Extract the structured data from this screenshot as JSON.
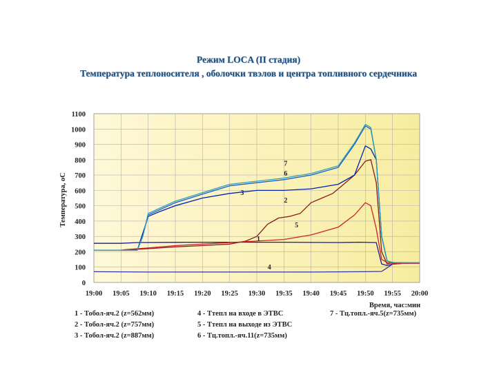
{
  "header": {
    "title": "Режим LOCA (II стадия)",
    "subtitle": "Температура теплоносителя , оболочки твэлов и центра топливного сердечника"
  },
  "chart_data": {
    "type": "line",
    "ylabel": "Температура, oC",
    "xlabel": "Время, час:мин",
    "ylim": [
      0,
      1100
    ],
    "yticks": [
      "0",
      "100",
      "200",
      "300",
      "400",
      "500",
      "600",
      "700",
      "800",
      "900",
      "1000",
      "1100"
    ],
    "xticks": [
      "19:00",
      "19:05",
      "19:10",
      "19:15",
      "19:20",
      "19:25",
      "19:30",
      "19:35",
      "19:40",
      "19:45",
      "19:50",
      "19:55",
      "20:00"
    ],
    "grid": true,
    "legend_placement": "bottom",
    "legend": [
      "1 - Тобол-яч.2 (z=562мм)",
      "2 - Тобол-яч.2 (z=757мм)",
      "3 - Тобол-яч.2 (z=887мм)",
      "4 - Ттепл на входе в ЭТВС",
      "5 - Ттепл на выходе из ЭТВС",
      "6 - Тц.топл.-яч.11(z=735мм)",
      "7 - Тц.топл.-яч.5(z=735мм)"
    ],
    "curve_labels": [
      "1",
      "2",
      "3",
      "4",
      "5",
      "6",
      "7"
    ],
    "series": [
      {
        "name": "1",
        "color": "#1a1a8c",
        "x": [
          0,
          5,
          8,
          20,
          35,
          45,
          49,
          52,
          53,
          54,
          55,
          57,
          60
        ],
        "y": [
          255,
          255,
          260,
          262,
          262,
          260,
          262,
          260,
          120,
          110,
          120,
          125,
          125
        ]
      },
      {
        "name": "2",
        "color": "#8b1a1a",
        "x": [
          0,
          5,
          10,
          15,
          20,
          25,
          28,
          30,
          32,
          34,
          36,
          38,
          40,
          42,
          44,
          46,
          48,
          50,
          51,
          52,
          53,
          54,
          55,
          57,
          60
        ],
        "y": [
          210,
          210,
          220,
          232,
          240,
          250,
          270,
          300,
          380,
          420,
          430,
          450,
          520,
          550,
          580,
          640,
          700,
          790,
          800,
          650,
          200,
          120,
          130,
          128,
          128
        ]
      },
      {
        "name": "3",
        "color": "#0020b0",
        "x": [
          0,
          8,
          9,
          10,
          12,
          15,
          20,
          25,
          30,
          35,
          40,
          45,
          48,
          50,
          51,
          52,
          53,
          54,
          55,
          57,
          60
        ],
        "y": [
          210,
          210,
          320,
          430,
          460,
          500,
          550,
          580,
          600,
          600,
          610,
          640,
          700,
          890,
          870,
          800,
          300,
          140,
          130,
          128,
          128
        ]
      },
      {
        "name": "4",
        "color": "#3333aa",
        "x": [
          0,
          10,
          20,
          30,
          40,
          50,
          53,
          54,
          55,
          57,
          60
        ],
        "y": [
          70,
          68,
          68,
          68,
          68,
          70,
          72,
          95,
          120,
          125,
          128
        ]
      },
      {
        "name": "5",
        "color": "#cc2222",
        "x": [
          0,
          5,
          6,
          10,
          15,
          20,
          25,
          30,
          35,
          40,
          45,
          48,
          50,
          51,
          52,
          53,
          54,
          55,
          57,
          60
        ],
        "y": [
          210,
          210,
          215,
          225,
          240,
          250,
          260,
          270,
          280,
          310,
          360,
          440,
          520,
          500,
          350,
          150,
          130,
          125,
          125,
          125
        ]
      },
      {
        "name": "6",
        "color": "#1a5ccc",
        "x": [
          0,
          8,
          9,
          10,
          15,
          20,
          25,
          30,
          35,
          40,
          45,
          48,
          50,
          51,
          52,
          53,
          54,
          55,
          57,
          60
        ],
        "y": [
          210,
          210,
          300,
          440,
          520,
          575,
          630,
          650,
          670,
          700,
          750,
          900,
          1020,
          1000,
          800,
          300,
          140,
          130,
          128,
          128
        ]
      },
      {
        "name": "7",
        "color": "#2aa0b8",
        "x": [
          0,
          8,
          9,
          10,
          15,
          20,
          25,
          30,
          35,
          40,
          45,
          48,
          50,
          51,
          52,
          53,
          54,
          55,
          57,
          60
        ],
        "y": [
          210,
          210,
          300,
          450,
          530,
          585,
          640,
          660,
          680,
          710,
          760,
          910,
          1030,
          1010,
          800,
          300,
          140,
          130,
          128,
          128
        ]
      }
    ]
  }
}
